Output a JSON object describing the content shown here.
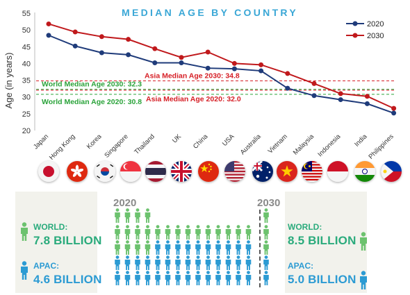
{
  "chart_data": {
    "type": "line",
    "title": "MEDIAN AGE BY COUNTRY",
    "ylabel": "Age (in years)",
    "ylim": [
      20,
      55
    ],
    "yticks": [
      20,
      25,
      30,
      35,
      40,
      45,
      50,
      55
    ],
    "grid": false,
    "legend_position": "top-right",
    "categories": [
      "Japan",
      "Hong Kong",
      "Korea",
      "Singapore",
      "Thailand",
      "UK",
      "China",
      "USA",
      "Australia",
      "Vietnam",
      "Malaysia",
      "Indonesia",
      "India",
      "Philippines"
    ],
    "series": [
      {
        "name": "2020",
        "color": "#1f3b7a",
        "values": [
          48.4,
          45.2,
          43.2,
          42.6,
          40.2,
          40.2,
          38.6,
          38.4,
          37.8,
          32.6,
          30.4,
          29.2,
          28.0,
          25.2
        ]
      },
      {
        "name": "2030",
        "color": "#c0191c",
        "values": [
          51.8,
          49.4,
          48.0,
          47.2,
          44.4,
          41.8,
          43.4,
          40.0,
          39.6,
          37.0,
          34.0,
          31.0,
          30.2,
          26.6
        ]
      }
    ],
    "reference_lines": [
      {
        "label": "World Median Age 2030: 32.3",
        "value": 32.3,
        "color": "#2aa33a"
      },
      {
        "label": "Asia Median Age 2030: 34.8",
        "value": 34.8,
        "color": "#d61f26"
      },
      {
        "label": "World Median Age 2020: 30.8",
        "value": 30.8,
        "color": "#2aa33a"
      },
      {
        "label": "Asia Median Age 2020: 32.0",
        "value": 32.0,
        "color": "#d61f26"
      }
    ]
  },
  "flags": [
    "japan-flag",
    "hong-kong-flag",
    "korea-flag",
    "singapore-flag",
    "thailand-flag",
    "uk-flag",
    "china-flag",
    "usa-flag",
    "australia-flag",
    "vietnam-flag",
    "malaysia-flag",
    "indonesia-flag",
    "india-flag",
    "philippines-flag"
  ],
  "population": {
    "year_2020": "2020",
    "year_2030": "2030",
    "left": {
      "world_label": "WORLD:",
      "world_value": "7.8 BILLION",
      "apac_label": "APAC:",
      "apac_value": "4.6 BILLION"
    },
    "right": {
      "world_label": "WORLD:",
      "world_value": "8.5 BILLION",
      "apac_label": "APAC:",
      "apac_value": "5.0 BILLION"
    },
    "colors": {
      "world": "#2aab7c",
      "world_icon": "#6cc26e",
      "apac": "#2c9bd3"
    }
  }
}
